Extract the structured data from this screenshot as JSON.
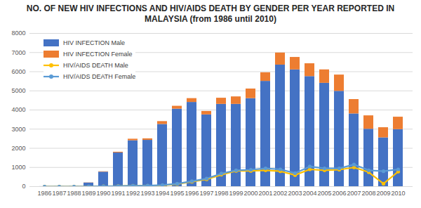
{
  "chart_data": {
    "type": "bar",
    "title": "NO. OF NEW HIV INFECTIONS AND HIV/AIDS DEATH BY GENDER PER YEAR REPORTED IN MALAYSIA (from 1986 until 2010)",
    "categories": [
      "1986",
      "1987",
      "1988",
      "1989",
      "1990",
      "1991",
      "1992",
      "1993",
      "1994",
      "1995",
      "1996",
      "1997",
      "1998",
      "1999",
      "2000",
      "2001",
      "2002",
      "2003",
      "2004",
      "2005",
      "2006",
      "2007",
      "2008",
      "2009",
      "2010"
    ],
    "stacked": true,
    "series": [
      {
        "name": "HIV INFECTION Male",
        "type": "bar",
        "color": "#4472c4",
        "values": [
          3,
          5,
          10,
          190,
          760,
          1760,
          2400,
          2420,
          3250,
          4050,
          4400,
          3750,
          4300,
          4300,
          4600,
          5500,
          6350,
          6100,
          5750,
          5400,
          4980,
          3800,
          3000,
          2550,
          2980
        ]
      },
      {
        "name": "HIV INFECTION Female",
        "type": "bar",
        "color": "#ed7d31",
        "values": [
          0,
          0,
          0,
          10,
          20,
          40,
          80,
          80,
          150,
          150,
          200,
          180,
          320,
          390,
          500,
          450,
          630,
          650,
          670,
          700,
          850,
          750,
          700,
          530,
          650
        ]
      },
      {
        "name": "HIV/AIDS DEATH Male",
        "type": "line",
        "color": "#ffc000",
        "marker": "circle",
        "values": [
          0,
          0,
          0,
          10,
          15,
          20,
          40,
          40,
          60,
          130,
          250,
          380,
          620,
          820,
          820,
          850,
          800,
          600,
          900,
          850,
          880,
          1000,
          750,
          150,
          780
        ]
      },
      {
        "name": "HIV/AIDS DEATH Female",
        "type": "line",
        "color": "#5b9bd5",
        "marker": "circle",
        "values": [
          0,
          0,
          0,
          10,
          15,
          20,
          45,
          50,
          80,
          150,
          280,
          420,
          680,
          850,
          880,
          950,
          900,
          700,
          1050,
          950,
          950,
          1150,
          850,
          800,
          900
        ]
      }
    ],
    "ylim": [
      0,
      8000
    ],
    "yticks": [
      0,
      1000,
      2000,
      3000,
      4000,
      5000,
      6000,
      7000,
      8000
    ],
    "grid": true,
    "legend": "upper left"
  }
}
